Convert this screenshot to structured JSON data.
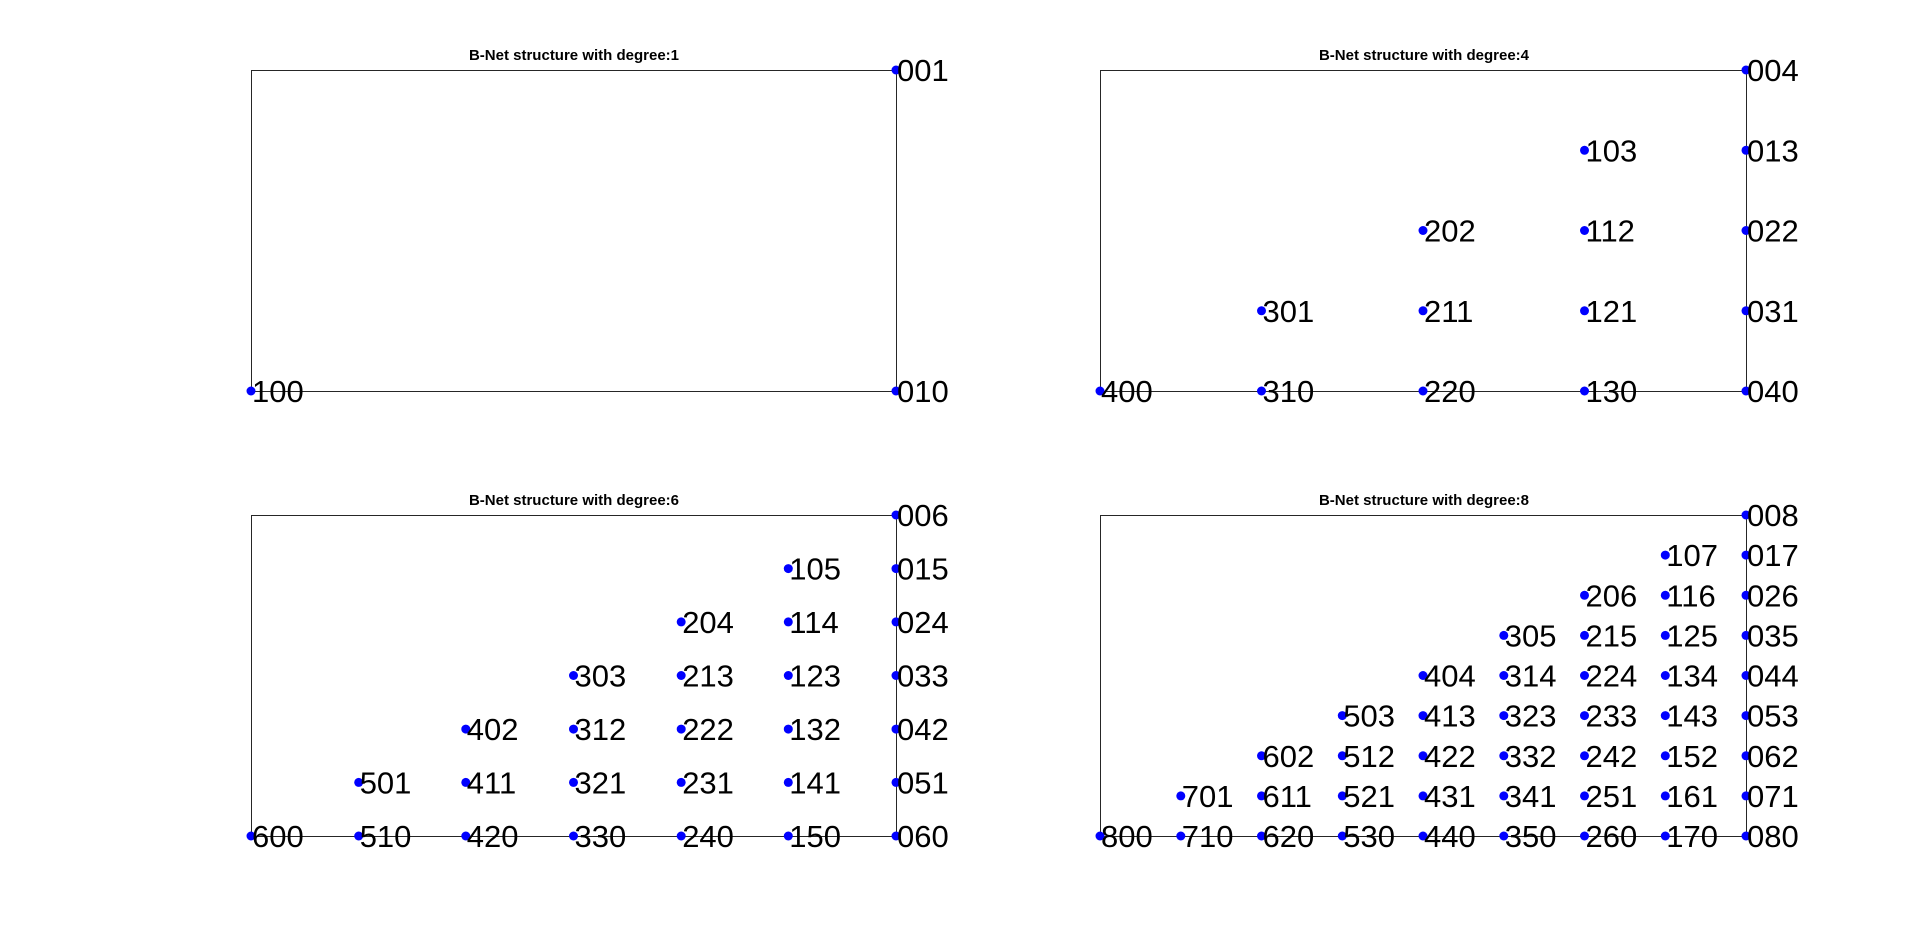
{
  "chart_data": [
    {
      "type": "scatter",
      "title": "B-Net structure with degree:1",
      "degree": 1,
      "xlim": [
        0,
        1
      ],
      "ylim": [
        0,
        1
      ],
      "grid": false,
      "marker_color": "#0000ff",
      "points": [
        {
          "x": 0,
          "y": 0,
          "label": "100"
        },
        {
          "x": 1,
          "y": 0,
          "label": "010"
        },
        {
          "x": 1,
          "y": 1,
          "label": "001"
        }
      ]
    },
    {
      "type": "scatter",
      "title": "B-Net structure with degree:4",
      "degree": 4,
      "xlim": [
        0,
        1
      ],
      "ylim": [
        0,
        1
      ],
      "grid": false,
      "marker_color": "#0000ff",
      "points": [
        {
          "x": 0.0,
          "y": 0.0,
          "label": "400"
        },
        {
          "x": 0.25,
          "y": 0.0,
          "label": "310"
        },
        {
          "x": 0.5,
          "y": 0.0,
          "label": "220"
        },
        {
          "x": 0.75,
          "y": 0.0,
          "label": "130"
        },
        {
          "x": 1.0,
          "y": 0.0,
          "label": "040"
        },
        {
          "x": 0.25,
          "y": 0.25,
          "label": "301"
        },
        {
          "x": 0.5,
          "y": 0.25,
          "label": "211"
        },
        {
          "x": 0.75,
          "y": 0.25,
          "label": "121"
        },
        {
          "x": 1.0,
          "y": 0.25,
          "label": "031"
        },
        {
          "x": 0.5,
          "y": 0.5,
          "label": "202"
        },
        {
          "x": 0.75,
          "y": 0.5,
          "label": "112"
        },
        {
          "x": 1.0,
          "y": 0.5,
          "label": "022"
        },
        {
          "x": 0.75,
          "y": 0.75,
          "label": "103"
        },
        {
          "x": 1.0,
          "y": 0.75,
          "label": "013"
        },
        {
          "x": 1.0,
          "y": 1.0,
          "label": "004"
        }
      ]
    },
    {
      "type": "scatter",
      "title": "B-Net structure with degree:6",
      "degree": 6,
      "xlim": [
        0,
        1
      ],
      "ylim": [
        0,
        1
      ],
      "grid": false,
      "marker_color": "#0000ff",
      "points": [
        {
          "x": 0.0,
          "y": 0.0,
          "label": "600"
        },
        {
          "x": 0.167,
          "y": 0.0,
          "label": "510"
        },
        {
          "x": 0.333,
          "y": 0.0,
          "label": "420"
        },
        {
          "x": 0.5,
          "y": 0.0,
          "label": "330"
        },
        {
          "x": 0.667,
          "y": 0.0,
          "label": "240"
        },
        {
          "x": 0.833,
          "y": 0.0,
          "label": "150"
        },
        {
          "x": 1.0,
          "y": 0.0,
          "label": "060"
        },
        {
          "x": 0.167,
          "y": 0.167,
          "label": "501"
        },
        {
          "x": 0.333,
          "y": 0.167,
          "label": "411"
        },
        {
          "x": 0.5,
          "y": 0.167,
          "label": "321"
        },
        {
          "x": 0.667,
          "y": 0.167,
          "label": "231"
        },
        {
          "x": 0.833,
          "y": 0.167,
          "label": "141"
        },
        {
          "x": 1.0,
          "y": 0.167,
          "label": "051"
        },
        {
          "x": 0.333,
          "y": 0.333,
          "label": "402"
        },
        {
          "x": 0.5,
          "y": 0.333,
          "label": "312"
        },
        {
          "x": 0.667,
          "y": 0.333,
          "label": "222"
        },
        {
          "x": 0.833,
          "y": 0.333,
          "label": "132"
        },
        {
          "x": 1.0,
          "y": 0.333,
          "label": "042"
        },
        {
          "x": 0.5,
          "y": 0.5,
          "label": "303"
        },
        {
          "x": 0.667,
          "y": 0.5,
          "label": "213"
        },
        {
          "x": 0.833,
          "y": 0.5,
          "label": "123"
        },
        {
          "x": 1.0,
          "y": 0.5,
          "label": "033"
        },
        {
          "x": 0.667,
          "y": 0.667,
          "label": "204"
        },
        {
          "x": 0.833,
          "y": 0.667,
          "label": "114"
        },
        {
          "x": 1.0,
          "y": 0.667,
          "label": "024"
        },
        {
          "x": 0.833,
          "y": 0.833,
          "label": "105"
        },
        {
          "x": 1.0,
          "y": 0.833,
          "label": "015"
        },
        {
          "x": 1.0,
          "y": 1.0,
          "label": "006"
        }
      ]
    },
    {
      "type": "scatter",
      "title": "B-Net structure with degree:8",
      "degree": 8,
      "xlim": [
        0,
        1
      ],
      "ylim": [
        0,
        1
      ],
      "grid": false,
      "marker_color": "#0000ff",
      "points": [
        {
          "x": 0.0,
          "y": 0.0,
          "label": "800"
        },
        {
          "x": 0.125,
          "y": 0.0,
          "label": "710"
        },
        {
          "x": 0.25,
          "y": 0.0,
          "label": "620"
        },
        {
          "x": 0.375,
          "y": 0.0,
          "label": "530"
        },
        {
          "x": 0.5,
          "y": 0.0,
          "label": "440"
        },
        {
          "x": 0.625,
          "y": 0.0,
          "label": "350"
        },
        {
          "x": 0.75,
          "y": 0.0,
          "label": "260"
        },
        {
          "x": 0.875,
          "y": 0.0,
          "label": "170"
        },
        {
          "x": 1.0,
          "y": 0.0,
          "label": "080"
        },
        {
          "x": 0.125,
          "y": 0.125,
          "label": "701"
        },
        {
          "x": 0.25,
          "y": 0.125,
          "label": "611"
        },
        {
          "x": 0.375,
          "y": 0.125,
          "label": "521"
        },
        {
          "x": 0.5,
          "y": 0.125,
          "label": "431"
        },
        {
          "x": 0.625,
          "y": 0.125,
          "label": "341"
        },
        {
          "x": 0.75,
          "y": 0.125,
          "label": "251"
        },
        {
          "x": 0.875,
          "y": 0.125,
          "label": "161"
        },
        {
          "x": 1.0,
          "y": 0.125,
          "label": "071"
        },
        {
          "x": 0.25,
          "y": 0.25,
          "label": "602"
        },
        {
          "x": 0.375,
          "y": 0.25,
          "label": "512"
        },
        {
          "x": 0.5,
          "y": 0.25,
          "label": "422"
        },
        {
          "x": 0.625,
          "y": 0.25,
          "label": "332"
        },
        {
          "x": 0.75,
          "y": 0.25,
          "label": "242"
        },
        {
          "x": 0.875,
          "y": 0.25,
          "label": "152"
        },
        {
          "x": 1.0,
          "y": 0.25,
          "label": "062"
        },
        {
          "x": 0.375,
          "y": 0.375,
          "label": "503"
        },
        {
          "x": 0.5,
          "y": 0.375,
          "label": "413"
        },
        {
          "x": 0.625,
          "y": 0.375,
          "label": "323"
        },
        {
          "x": 0.75,
          "y": 0.375,
          "label": "233"
        },
        {
          "x": 0.875,
          "y": 0.375,
          "label": "143"
        },
        {
          "x": 1.0,
          "y": 0.375,
          "label": "053"
        },
        {
          "x": 0.5,
          "y": 0.5,
          "label": "404"
        },
        {
          "x": 0.625,
          "y": 0.5,
          "label": "314"
        },
        {
          "x": 0.75,
          "y": 0.5,
          "label": "224"
        },
        {
          "x": 0.875,
          "y": 0.5,
          "label": "134"
        },
        {
          "x": 1.0,
          "y": 0.5,
          "label": "044"
        },
        {
          "x": 0.625,
          "y": 0.625,
          "label": "305"
        },
        {
          "x": 0.75,
          "y": 0.625,
          "label": "215"
        },
        {
          "x": 0.875,
          "y": 0.625,
          "label": "125"
        },
        {
          "x": 1.0,
          "y": 0.625,
          "label": "035"
        },
        {
          "x": 0.75,
          "y": 0.75,
          "label": "206"
        },
        {
          "x": 0.875,
          "y": 0.75,
          "label": "116"
        },
        {
          "x": 1.0,
          "y": 0.75,
          "label": "026"
        },
        {
          "x": 0.875,
          "y": 0.875,
          "label": "107"
        },
        {
          "x": 1.0,
          "y": 0.875,
          "label": "017"
        },
        {
          "x": 1.0,
          "y": 1.0,
          "label": "008"
        }
      ]
    }
  ]
}
